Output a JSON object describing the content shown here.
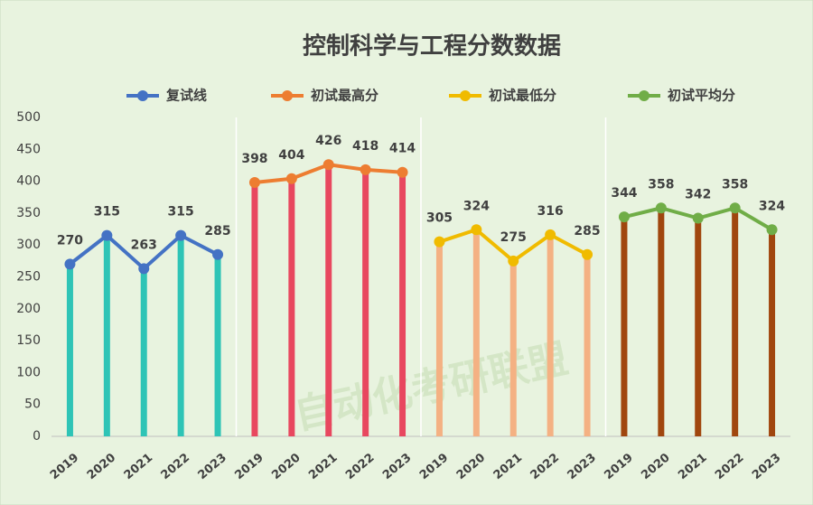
{
  "chart_data": {
    "type": "bar-line",
    "title": "控制科学与工程分数数据",
    "watermark": "自动化考研联盟",
    "categories": [
      "2019",
      "2020",
      "2021",
      "2022",
      "2023",
      "2019",
      "2020",
      "2021",
      "2022",
      "2023",
      "2019",
      "2020",
      "2021",
      "2022",
      "2023",
      "2019",
      "2020",
      "2021",
      "2022",
      "2023"
    ],
    "series": [
      {
        "name": "复试线",
        "color": "#4472c4",
        "bar_color": "#2ec4b6",
        "values": [
          270,
          315,
          263,
          315,
          285,
          null,
          null,
          null,
          null,
          null,
          null,
          null,
          null,
          null,
          null,
          null,
          null,
          null,
          null,
          null
        ]
      },
      {
        "name": "初试最高分",
        "color": "#ed7d31",
        "bar_color": "#e8475f",
        "values": [
          null,
          null,
          null,
          null,
          null,
          398,
          404,
          426,
          418,
          414,
          null,
          null,
          null,
          null,
          null,
          null,
          null,
          null,
          null,
          null
        ]
      },
      {
        "name": "初试最低分",
        "color": "#f0bb00",
        "bar_color": "#f4b183",
        "values": [
          null,
          null,
          null,
          null,
          null,
          null,
          null,
          null,
          null,
          null,
          305,
          324,
          275,
          316,
          285,
          null,
          null,
          null,
          null,
          null
        ]
      },
      {
        "name": "初试平均分",
        "color": "#70ad47",
        "bar_color": "#a0460e",
        "values": [
          null,
          null,
          null,
          null,
          null,
          null,
          null,
          null,
          null,
          null,
          null,
          null,
          null,
          null,
          null,
          344,
          358,
          342,
          358,
          324
        ]
      }
    ],
    "ylim": [
      0,
      500
    ],
    "yticks": [
      0,
      50,
      100,
      150,
      200,
      250,
      300,
      350,
      400,
      450,
      500
    ],
    "grid": false,
    "legend": "top"
  }
}
